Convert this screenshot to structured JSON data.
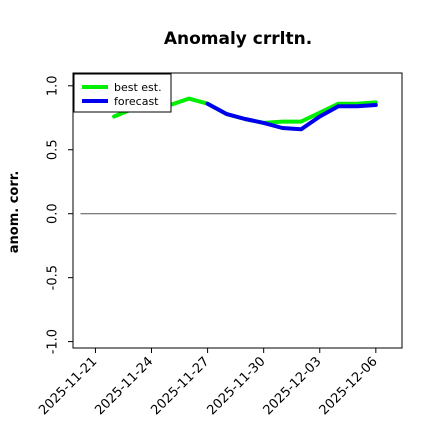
{
  "chart_data": {
    "type": "line",
    "title": "Anomaly crrltn.",
    "ylabel": "anom. corr.",
    "xlabel": "",
    "ylim": [
      -1.05,
      1.1
    ],
    "yticks": [
      -1.0,
      -0.5,
      0.0,
      0.5,
      1.0
    ],
    "ytick_labels": [
      "-1.0",
      "-0.5",
      "0.0",
      "0.5",
      "1.0"
    ],
    "x_start": "2025-11-19",
    "xlim_days": [
      0.8,
      18.4
    ],
    "xtick_days": [
      2,
      5,
      8,
      11,
      14,
      17
    ],
    "xtick_labels": [
      "2025-11-21",
      "2025-11-24",
      "2025-11-27",
      "2025-11-30",
      "2025-12-03",
      "2025-12-06"
    ],
    "xtick_colors": [
      "#000000",
      "#000000",
      "#008000",
      "#000000",
      "#000000",
      "#000000"
    ],
    "zero_line": 0.0,
    "legend_position": "upper-left",
    "series": [
      {
        "name": "best est.",
        "color": "#00ee00",
        "x": [
          3,
          4,
          5,
          6,
          7,
          8,
          9,
          10,
          11,
          12,
          13,
          14,
          15,
          16,
          17
        ],
        "values": [
          0.76,
          0.82,
          0.84,
          0.85,
          0.9,
          0.86,
          0.78,
          0.74,
          0.71,
          0.72,
          0.72,
          0.79,
          0.86,
          0.86,
          0.87
        ]
      },
      {
        "name": "forecast",
        "color": "#0000ee",
        "x": [
          8,
          9,
          10,
          11,
          12,
          13,
          14,
          15,
          16,
          17
        ],
        "values": [
          0.86,
          0.78,
          0.74,
          0.71,
          0.67,
          0.66,
          0.76,
          0.84,
          0.84,
          0.85
        ]
      }
    ]
  }
}
